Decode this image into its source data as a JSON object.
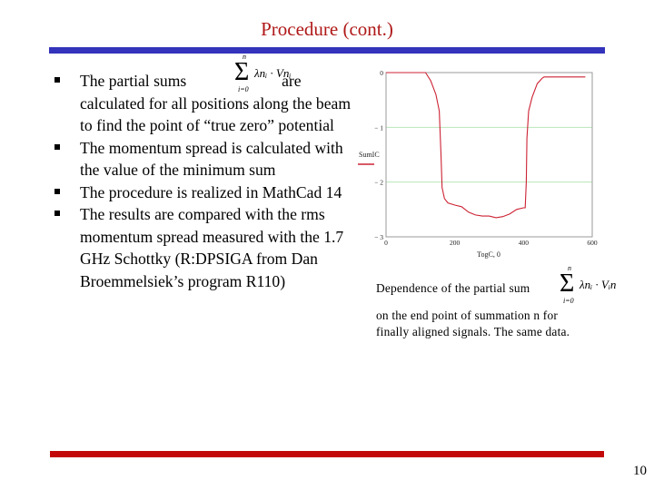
{
  "slide": {
    "title": "Procedure (cont.)",
    "page_number": "10",
    "colors": {
      "title": "#b01818",
      "top_bar": "#3333bb",
      "bottom_bar": "#c20808",
      "curve": "#cc2233",
      "grid": "#b8e6b8"
    }
  },
  "bullets": [
    {
      "pre": "The partial sums",
      "formula": "Σ_{i=0}^{n} λn_i · Vn_i",
      "post": "are calculated for all positions along the beam to find the point of “true zero” potential"
    },
    {
      "text": "The momentum spread is calculated with the value of the minimum sum"
    },
    {
      "text": "The procedure is realized in MathCad 14"
    },
    {
      "text": "The results are compared with the rms momentum spread measured with the 1.7 GHz Schottky (R:DPSIGA from Dan Broemmelsiek’s program R110)"
    }
  ],
  "formula_left": {
    "sigma": "Σ",
    "upper": "n",
    "lower": "i=0",
    "body": "λnᵢ · Vnᵢ"
  },
  "formula_caption": {
    "sigma": "Σ",
    "upper": "n",
    "lower": "i=0",
    "body": "λnᵢ · Vᵢn"
  },
  "caption": {
    "line1": "Dependence of the partial sum",
    "line2": "on the end point of summation n for",
    "line3": "finally aligned signals. The same data."
  },
  "chart_data": {
    "type": "line",
    "title": "",
    "xlabel": "Tog_{C,0}",
    "ylabel": "Sum_{IC}",
    "xlim": [
      0,
      600
    ],
    "ylim": [
      -3,
      0
    ],
    "x_ticks": [
      "0",
      "200",
      "400",
      "600"
    ],
    "y_ticks": [
      "0",
      "− 1",
      "− 2",
      "− 3"
    ],
    "grid": "horizontal at -1 and -2",
    "legend": [
      {
        "name": "Sum_{IC}",
        "color": "#cc2233"
      }
    ],
    "series": [
      {
        "name": "Sum_IC",
        "x": [
          0,
          115,
          130,
          145,
          155,
          160,
          163,
          170,
          180,
          200,
          220,
          240,
          260,
          280,
          300,
          320,
          340,
          360,
          380,
          400,
          405,
          408,
          410,
          415,
          425,
          440,
          455,
          460,
          580
        ],
        "y": [
          0,
          0,
          -0.15,
          -0.4,
          -0.7,
          -1.5,
          -2.1,
          -2.3,
          -2.38,
          -2.42,
          -2.45,
          -2.55,
          -2.6,
          -2.62,
          -2.62,
          -2.65,
          -2.63,
          -2.58,
          -2.5,
          -2.47,
          -2.47,
          -2.0,
          -1.2,
          -0.7,
          -0.45,
          -0.2,
          -0.1,
          -0.08,
          -0.08
        ]
      }
    ]
  }
}
